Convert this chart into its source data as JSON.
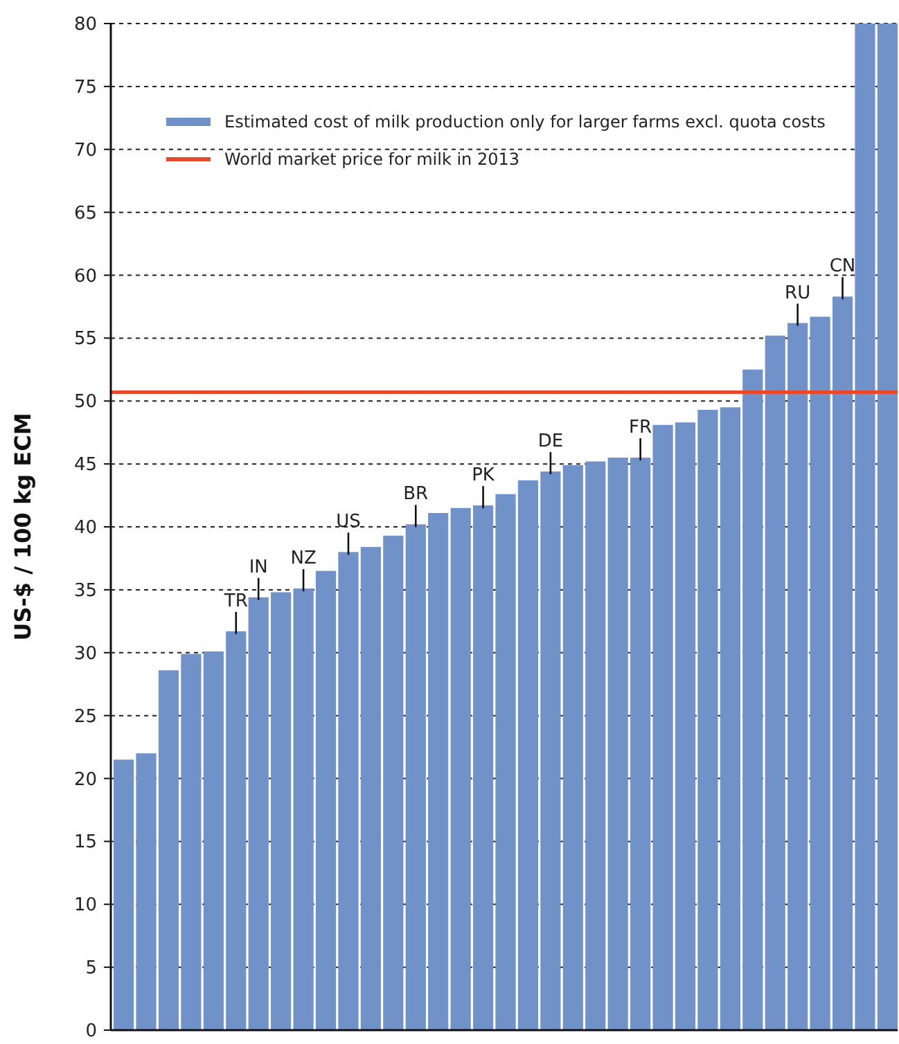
{
  "chart_data": {
    "type": "bar",
    "ylabel": "US-$ / 100 kg ECM",
    "categories": [
      null,
      null,
      null,
      null,
      null,
      "TR",
      "IN",
      null,
      "NZ",
      null,
      "US",
      null,
      null,
      "BR",
      null,
      null,
      "PK",
      null,
      null,
      "DE",
      null,
      null,
      null,
      "FR",
      null,
      null,
      null,
      null,
      null,
      null,
      "RU",
      null,
      "CN",
      null,
      null
    ],
    "series": [
      {
        "name": "Estimated cost of milk production only for larger farms excl. quota costs",
        "color": "#7191c9",
        "values": [
          21.5,
          22.0,
          28.6,
          29.9,
          30.1,
          31.7,
          34.4,
          34.8,
          35.1,
          36.5,
          38.0,
          38.4,
          39.3,
          40.2,
          41.1,
          41.5,
          41.7,
          42.6,
          43.7,
          44.4,
          44.9,
          45.2,
          45.5,
          45.5,
          48.1,
          48.3,
          49.3,
          49.5,
          52.5,
          55.2,
          56.2,
          56.7,
          58.3,
          80,
          80
        ]
      }
    ],
    "ylim": [
      0,
      80
    ],
    "yticks": [
      0,
      5,
      10,
      15,
      20,
      25,
      30,
      35,
      40,
      45,
      50,
      55,
      60,
      65,
      70,
      75,
      80
    ],
    "grid": "y",
    "legend": "top left",
    "ref_lines": [
      {
        "axis": "y",
        "value": 50.7,
        "label": "World market price for milk in 2013",
        "color": "#e8492a"
      }
    ]
  }
}
